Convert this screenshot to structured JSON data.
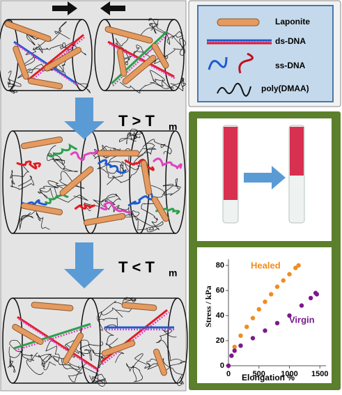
{
  "legend": {
    "items": [
      "Laponite",
      "ds-DNA",
      "ss-DNA",
      "poly(DMAA)"
    ]
  },
  "steps": [
    {
      "label": "T > T",
      "subscript": "m"
    },
    {
      "label": "T < T",
      "subscript": "m"
    }
  ],
  "chart_data": {
    "type": "scatter",
    "x_label": "Elongation %",
    "y_label": "Stress / kPa",
    "xlim": [
      0,
      1600
    ],
    "ylim": [
      0,
      85
    ],
    "xticks": [
      0,
      500,
      1000,
      1500
    ],
    "yticks": [
      0,
      20,
      40,
      60,
      80
    ],
    "series": [
      {
        "name": "Healed",
        "color": "#f28c1e",
        "x": [
          0,
          50,
          100,
          200,
          300,
          400,
          500,
          600,
          700,
          800,
          900,
          1000,
          1100,
          1150
        ],
        "values": [
          0,
          8,
          15,
          24,
          31,
          38,
          45,
          51,
          57,
          63,
          68,
          73,
          78,
          80
        ]
      },
      {
        "name": "Virgin",
        "color": "#7b1a8c",
        "x": [
          0,
          50,
          100,
          200,
          400,
          600,
          800,
          1000,
          1200,
          1350,
          1430,
          1450
        ],
        "values": [
          0,
          8,
          12,
          16,
          22,
          28,
          34,
          40,
          48,
          54,
          58,
          57
        ]
      }
    ]
  }
}
